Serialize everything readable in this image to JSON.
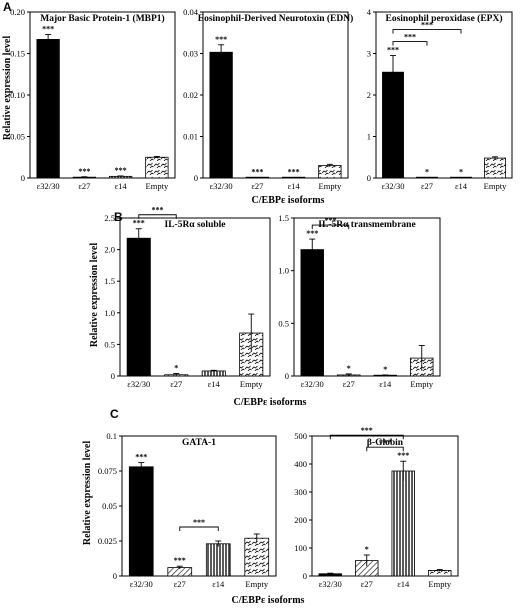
{
  "x_label": "C/EBPε isoforms",
  "y_label": "Relative expression level",
  "chart_data": [
    {
      "panel": "A",
      "type": "bar",
      "title": "Major Basic Protein-1 (MBP1)",
      "categories": [
        "ε32/30",
        "ε27",
        "ε14",
        "Empty"
      ],
      "values": [
        0.167,
        0.001,
        0.002,
        0.025
      ],
      "errors": [
        0.006,
        0.0005,
        0.0005,
        0.001
      ],
      "significance": [
        "***",
        "***",
        "***",
        ""
      ],
      "ylim": [
        0,
        0.2
      ],
      "yticks": [
        0,
        0.05,
        0.1,
        0.15,
        0.2
      ],
      "yticklabels": [
        "0",
        "0.05",
        "0.10",
        "0.15",
        "0.20"
      ],
      "brackets": []
    },
    {
      "panel": "A",
      "type": "bar",
      "title": "Eosinophil-Derived Neurotoxin (EDN)",
      "categories": [
        "ε32/30",
        "ε27",
        "ε14",
        "Empty"
      ],
      "values": [
        0.0303,
        0.0001,
        0.0001,
        0.003
      ],
      "errors": [
        0.0018,
        0,
        0,
        0.0003
      ],
      "significance": [
        "***",
        "***",
        "***",
        ""
      ],
      "ylim": [
        0,
        0.04
      ],
      "yticks": [
        0,
        0.01,
        0.02,
        0.03,
        0.04
      ],
      "yticklabels": [
        "0",
        "0.01",
        "0.02",
        "0.03",
        "0.04"
      ],
      "brackets": []
    },
    {
      "panel": "A",
      "type": "bar",
      "title": "Eosinophil peroxidase (EPX)",
      "categories": [
        "ε32/30",
        "ε27",
        "ε14",
        "Empty"
      ],
      "values": [
        2.55,
        0.01,
        0.01,
        0.48
      ],
      "errors": [
        0.4,
        0,
        0,
        0.03
      ],
      "significance": [
        "***",
        "*",
        "*",
        ""
      ],
      "ylim": [
        0,
        4
      ],
      "yticks": [
        0,
        1,
        2,
        3,
        4
      ],
      "yticklabels": [
        "0",
        "1",
        "2",
        "3",
        "4"
      ],
      "brackets": [
        {
          "from": 0,
          "to": 1,
          "label": "***",
          "level": 0
        },
        {
          "from": 0,
          "to": 2,
          "label": "***",
          "level": 1
        }
      ]
    },
    {
      "panel": "B",
      "type": "bar",
      "title": "IL-5Rα soluble",
      "categories": [
        "ε32/30",
        "ε27",
        "ε14",
        "Empty"
      ],
      "values": [
        2.18,
        0.02,
        0.08,
        0.68
      ],
      "errors": [
        0.15,
        0.02,
        0.01,
        0.3
      ],
      "significance": [
        "***",
        "*",
        "",
        ""
      ],
      "ylim": [
        0,
        2.5
      ],
      "yticks": [
        0,
        0.5,
        1.0,
        1.5,
        2.0,
        2.5
      ],
      "yticklabels": [
        "0",
        "0.5",
        "1.0",
        "1.5",
        "2.0",
        "2.5"
      ],
      "brackets": [
        {
          "from": 0,
          "to": 1,
          "label": "***",
          "level": 0
        }
      ]
    },
    {
      "panel": "B",
      "type": "bar",
      "title": "IL-5Rα transmembrane",
      "categories": [
        "ε32/30",
        "ε27",
        "ε14",
        "Empty"
      ],
      "values": [
        1.2,
        0.01,
        0.005,
        0.17
      ],
      "errors": [
        0.1,
        0.01,
        0.005,
        0.12
      ],
      "significance": [
        "***",
        "*",
        "*",
        ""
      ],
      "ylim": [
        0,
        1.5
      ],
      "yticks": [
        0,
        0.5,
        1.0,
        1.5
      ],
      "yticklabels": [
        "0",
        "0.5",
        "1.0",
        "1.5"
      ],
      "brackets": [
        {
          "from": 0,
          "to": 1,
          "label": "***",
          "level": 0
        }
      ]
    },
    {
      "panel": "C",
      "type": "bar",
      "title": "GATA-1",
      "categories": [
        "ε32/30",
        "ε27",
        "ε14",
        "Empty"
      ],
      "values": [
        0.078,
        0.006,
        0.023,
        0.027
      ],
      "errors": [
        0.003,
        0.001,
        0.002,
        0.003
      ],
      "significance": [
        "***",
        "***",
        "",
        ""
      ],
      "ylim": [
        0,
        0.1
      ],
      "yticks": [
        0,
        0.025,
        0.05,
        0.075,
        0.1
      ],
      "yticklabels": [
        "0",
        "0.025",
        "0.05",
        "0.075",
        "0.1"
      ],
      "brackets": [
        {
          "from": 1,
          "to": 2,
          "label": "***",
          "level": 0
        }
      ]
    },
    {
      "panel": "C",
      "type": "bar",
      "title": "β-Globin",
      "categories": [
        "ε32/30",
        "ε27",
        "ε14",
        "Empty"
      ],
      "values": [
        8,
        55,
        375,
        20
      ],
      "errors": [
        2,
        20,
        35,
        3
      ],
      "significance": [
        "",
        "*",
        "***",
        ""
      ],
      "ylim": [
        0,
        500
      ],
      "yticks": [
        0,
        100,
        200,
        300,
        400,
        500
      ],
      "yticklabels": [
        "0",
        "100",
        "200",
        "300",
        "400",
        "500"
      ],
      "brackets": [
        {
          "from": 1,
          "to": 2,
          "label": "***",
          "level": 0
        },
        {
          "from": 0,
          "to": 2,
          "label": "***",
          "level": 1
        }
      ]
    }
  ],
  "panel_letters": [
    "A",
    "B",
    "C"
  ],
  "bar_fills": [
    "solid",
    "none",
    "vlines",
    "zigzag"
  ],
  "colors": {
    "bar_dark": "#000000",
    "axis": "#000000",
    "background": "#ffffff"
  }
}
